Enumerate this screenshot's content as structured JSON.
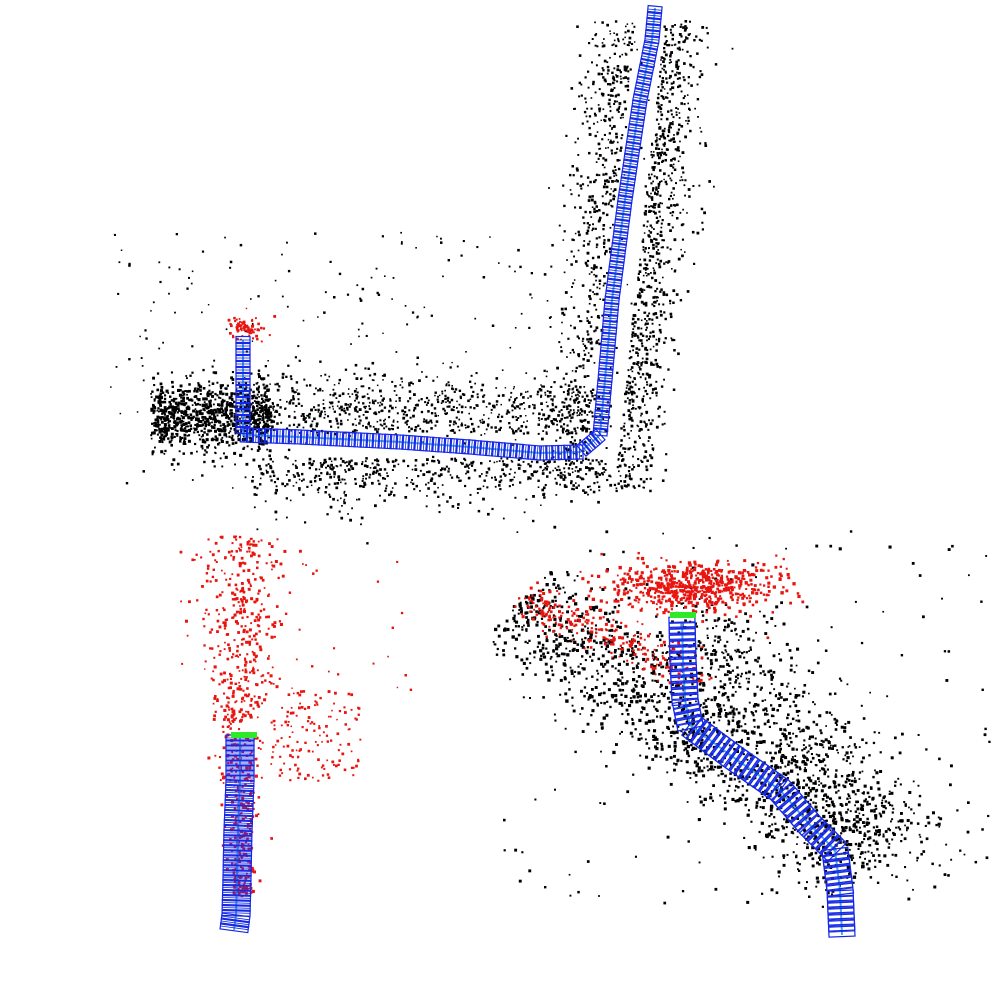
{
  "colors": {
    "background": "#ffffff",
    "map_points": "#000000",
    "current_points": "#e8140f",
    "camera_frame": "#1428e6",
    "trajectory_edge": "#4aa8e8",
    "current_camera": "#2ee82a"
  },
  "panels": [
    {
      "name": "top-view",
      "has_current_camera": false
    },
    {
      "name": "front-view",
      "has_current_camera": true
    },
    {
      "name": "oblique-view",
      "has_current_camera": true
    }
  ]
}
